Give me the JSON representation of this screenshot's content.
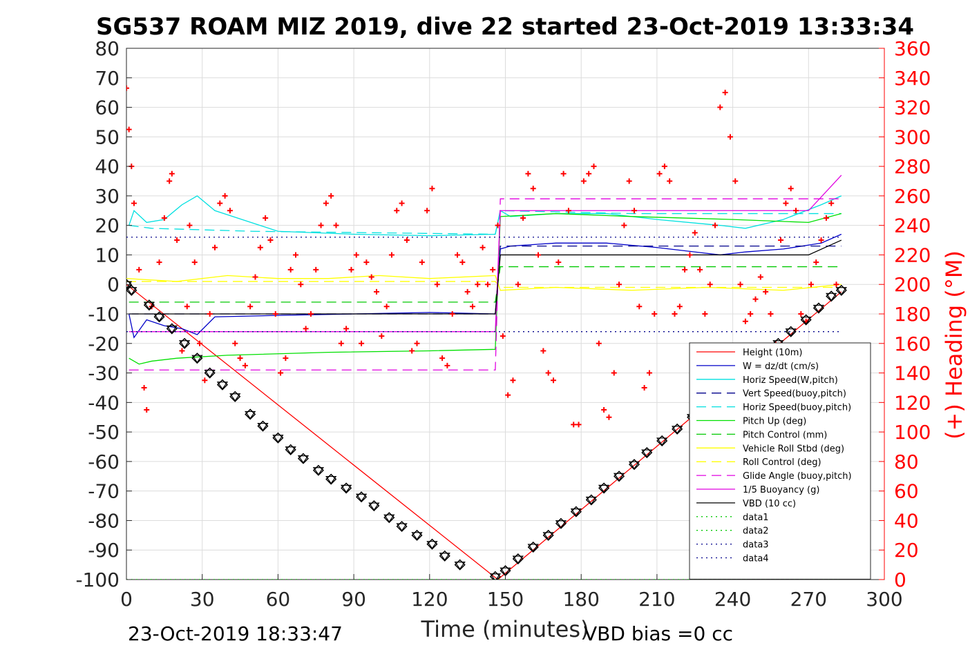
{
  "chart_data": {
    "type": "line",
    "title": "SG537 ROAM MIZ 2019, dive 22 started 23-Oct-2019 13:33:34",
    "xlabel": "Time (minutes)",
    "ylabel": "",
    "ylabel_right": "(+) Heading (°M)",
    "xlim": [
      0,
      300
    ],
    "ylim": [
      -100,
      80
    ],
    "ylim_right": [
      0,
      360
    ],
    "xticks": [
      "0",
      "30",
      "60",
      "90",
      "120",
      "150",
      "180",
      "210",
      "240",
      "270",
      "300"
    ],
    "yticks": [
      "80",
      "70",
      "60",
      "50",
      "40",
      "30",
      "20",
      "10",
      "0",
      "-10",
      "-20",
      "-30",
      "-40",
      "-50",
      "-60",
      "-70",
      "-80",
      "-90",
      "-100"
    ],
    "yticks_right": [
      "360",
      "340",
      "320",
      "300",
      "280",
      "260",
      "240",
      "220",
      "200",
      "180",
      "160",
      "140",
      "120",
      "100",
      "80",
      "60",
      "40",
      "20",
      "0"
    ],
    "grid": true,
    "legend_position": "bottom-right",
    "footer_left": "23-Oct-2019 18:33:47",
    "footer_right": "VBD bias =0 cc",
    "series": [
      {
        "name": "Height (10m)",
        "color": "#ff0000",
        "style": "solid",
        "x": [
          0,
          147,
          283
        ],
        "y": [
          0,
          -100,
          -2.5
        ]
      },
      {
        "name": "W = dz/dt (cm/s)",
        "color": "#0000c8",
        "style": "solid",
        "x": [
          1,
          3,
          8,
          15,
          22,
          28,
          35,
          60,
          90,
          120,
          146,
          148,
          152,
          170,
          190,
          210,
          235,
          245,
          260,
          275,
          283
        ],
        "y": [
          -10,
          -18,
          -12,
          -14,
          -15,
          -17,
          -11,
          -10.5,
          -10,
          -9.5,
          -10,
          12,
          13,
          14,
          14,
          12.5,
          10,
          11,
          12,
          14,
          17
        ]
      },
      {
        "name": "Horiz Speed(W,pitch)",
        "color": "#00e0e0",
        "style": "solid",
        "x": [
          1,
          3,
          8,
          15,
          22,
          28,
          35,
          60,
          90,
          120,
          146,
          148,
          152,
          170,
          190,
          210,
          235,
          245,
          260,
          275,
          283
        ],
        "y": [
          20,
          25,
          21,
          22,
          27,
          30,
          25,
          18,
          17,
          16.5,
          17,
          25,
          23,
          24,
          24,
          22,
          20,
          19,
          22,
          27,
          30
        ]
      },
      {
        "name": "Vert Speed(buoy,pitch)",
        "color": "#00008b",
        "style": "dashed",
        "x": [
          1,
          146,
          148,
          283
        ],
        "y": [
          -10,
          -10,
          13,
          13
        ]
      },
      {
        "name": "Horiz Speed(buoy,pitch)",
        "color": "#00e0e0",
        "style": "dashed",
        "x": [
          1,
          10,
          50,
          146,
          148,
          200,
          283
        ],
        "y": [
          20,
          19,
          18,
          17,
          25,
          24,
          24
        ]
      },
      {
        "name": "Pitch Up (deg)",
        "color": "#00e000",
        "style": "solid",
        "x": [
          1,
          5,
          10,
          20,
          40,
          80,
          120,
          146,
          148,
          170,
          200,
          240,
          270,
          283
        ],
        "y": [
          -25,
          -27,
          -26,
          -25,
          -24,
          -23,
          -22.5,
          -22,
          23,
          24,
          23,
          22,
          21,
          24
        ]
      },
      {
        "name": "Pitch Control (mm)",
        "color": "#00c800",
        "style": "dashed",
        "x": [
          1,
          146,
          148,
          283
        ],
        "y": [
          -6,
          -6,
          6,
          6
        ]
      },
      {
        "name": "Vehicle Roll Stbd (deg)",
        "color": "#ffff00",
        "style": "solid",
        "x": [
          0,
          20,
          40,
          60,
          80,
          100,
          120,
          146,
          148,
          170,
          200,
          230,
          260,
          283
        ],
        "y": [
          2,
          1,
          3,
          2,
          2,
          3,
          2,
          3,
          -2,
          -1,
          -2,
          -1,
          -2,
          0
        ]
      },
      {
        "name": "Roll Control (deg)",
        "color": "#ffff00",
        "style": "dashed",
        "x": [
          0,
          146,
          148,
          283
        ],
        "y": [
          1,
          1,
          -1,
          -1
        ]
      },
      {
        "name": "Glide Angle (buoy,pitch)",
        "color": "#e000e0",
        "style": "dashed",
        "x": [
          1,
          146,
          148,
          283
        ],
        "y": [
          -29,
          -29,
          29,
          29
        ]
      },
      {
        "name": "1/5 Buoyancy (g)",
        "color": "#e000e0",
        "style": "solid",
        "x": [
          1,
          20,
          146,
          148,
          270,
          283
        ],
        "y": [
          -16,
          -16,
          -16,
          25,
          25,
          37
        ]
      },
      {
        "name": "VBD (10 cc)",
        "color": "#000000",
        "style": "solid",
        "x": [
          1,
          146,
          148,
          270,
          283
        ],
        "y": [
          -10,
          -10,
          10,
          10,
          15
        ]
      },
      {
        "name": "data1",
        "color": "#00c800",
        "style": "dotted",
        "x": [
          0,
          283
        ],
        "y": [
          -100,
          -100
        ]
      },
      {
        "name": "data2",
        "color": "#00c800",
        "style": "dotted",
        "x": [
          0,
          283
        ],
        "y": [
          -100,
          -100
        ]
      },
      {
        "name": "data3",
        "color": "#00008b",
        "style": "dotted",
        "x": [
          0,
          283
        ],
        "y": [
          16,
          16
        ]
      },
      {
        "name": "data4",
        "color": "#00008b",
        "style": "dotted",
        "x": [
          0,
          283
        ],
        "y": [
          -16,
          -16
        ]
      }
    ],
    "markers_series": {
      "name": "Height (10m)",
      "x": [
        0,
        2,
        9,
        13,
        18,
        23,
        28,
        33,
        38,
        43,
        49,
        54,
        60,
        65,
        70,
        76,
        81,
        87,
        93,
        98,
        104,
        109,
        115,
        121,
        126,
        132,
        146,
        150,
        155,
        161,
        167,
        172,
        178,
        184,
        189,
        195,
        201,
        206,
        212,
        218,
        224,
        229,
        235,
        240,
        246,
        252,
        258,
        263,
        269,
        274,
        279,
        283
      ],
      "y": [
        0,
        -2,
        -7,
        -11,
        -15,
        -20,
        -25,
        -30,
        -34,
        -38,
        -44,
        -48,
        -52,
        -56,
        -59,
        -63,
        -66,
        -69,
        -72,
        -75,
        -79,
        -82,
        -85,
        -88,
        -92,
        -95,
        -99,
        -97,
        -93,
        -89,
        -85,
        -81,
        -77,
        -73,
        -69,
        -65,
        -61,
        -57,
        -53,
        -49,
        -45,
        -40,
        -36,
        -32,
        -28,
        -24,
        -20,
        -16,
        -12,
        -8,
        -4,
        -2
      ]
    },
    "heading_points": {
      "name": "Heading",
      "color": "#ff0000",
      "x": [
        0,
        1,
        2,
        3,
        5,
        7,
        8,
        10,
        13,
        15,
        17,
        18,
        20,
        22,
        24,
        25,
        27,
        29,
        31,
        33,
        35,
        37,
        39,
        41,
        43,
        45,
        47,
        49,
        51,
        53,
        55,
        57,
        59,
        61,
        63,
        65,
        67,
        69,
        71,
        73,
        75,
        77,
        79,
        81,
        83,
        85,
        87,
        89,
        91,
        93,
        95,
        97,
        99,
        101,
        103,
        105,
        107,
        109,
        111,
        113,
        115,
        117,
        119,
        121,
        123,
        125,
        127,
        129,
        131,
        133,
        135,
        137,
        139,
        141,
        143,
        145,
        147,
        149,
        151,
        153,
        155,
        157,
        159,
        161,
        163,
        165,
        167,
        169,
        171,
        173,
        175,
        177,
        179,
        181,
        183,
        185,
        187,
        189,
        191,
        193,
        195,
        197,
        199,
        201,
        203,
        205,
        207,
        209,
        211,
        213,
        215,
        217,
        219,
        221,
        223,
        225,
        227,
        229,
        231,
        233,
        235,
        237,
        239,
        241,
        243,
        245,
        247,
        249,
        251,
        253,
        255,
        257,
        259,
        261,
        263,
        265,
        267,
        269,
        271,
        273,
        275,
        277,
        279,
        281
      ],
      "y": [
        333,
        305,
        280,
        255,
        210,
        130,
        115,
        185,
        215,
        245,
        270,
        275,
        230,
        155,
        185,
        240,
        215,
        160,
        135,
        180,
        225,
        255,
        260,
        250,
        160,
        150,
        145,
        185,
        205,
        225,
        245,
        230,
        180,
        140,
        150,
        210,
        220,
        200,
        170,
        180,
        210,
        240,
        255,
        260,
        240,
        160,
        170,
        210,
        220,
        160,
        215,
        205,
        195,
        165,
        185,
        220,
        250,
        255,
        230,
        155,
        160,
        215,
        250,
        265,
        200,
        150,
        145,
        180,
        220,
        215,
        195,
        185,
        200,
        225,
        200,
        210,
        240,
        165,
        125,
        135,
        200,
        245,
        275,
        265,
        220,
        155,
        140,
        135,
        215,
        275,
        250,
        105,
        105,
        270,
        275,
        280,
        160,
        115,
        110,
        140,
        200,
        240,
        270,
        250,
        185,
        130,
        140,
        180,
        275,
        280,
        270,
        180,
        185,
        210,
        220,
        235,
        210,
        180,
        200,
        240,
        320,
        330,
        300,
        270,
        200,
        175,
        180,
        190,
        205,
        195,
        180,
        160,
        230,
        255,
        265,
        250,
        180,
        175,
        200,
        215,
        230,
        245,
        255,
        200
      ]
    }
  }
}
